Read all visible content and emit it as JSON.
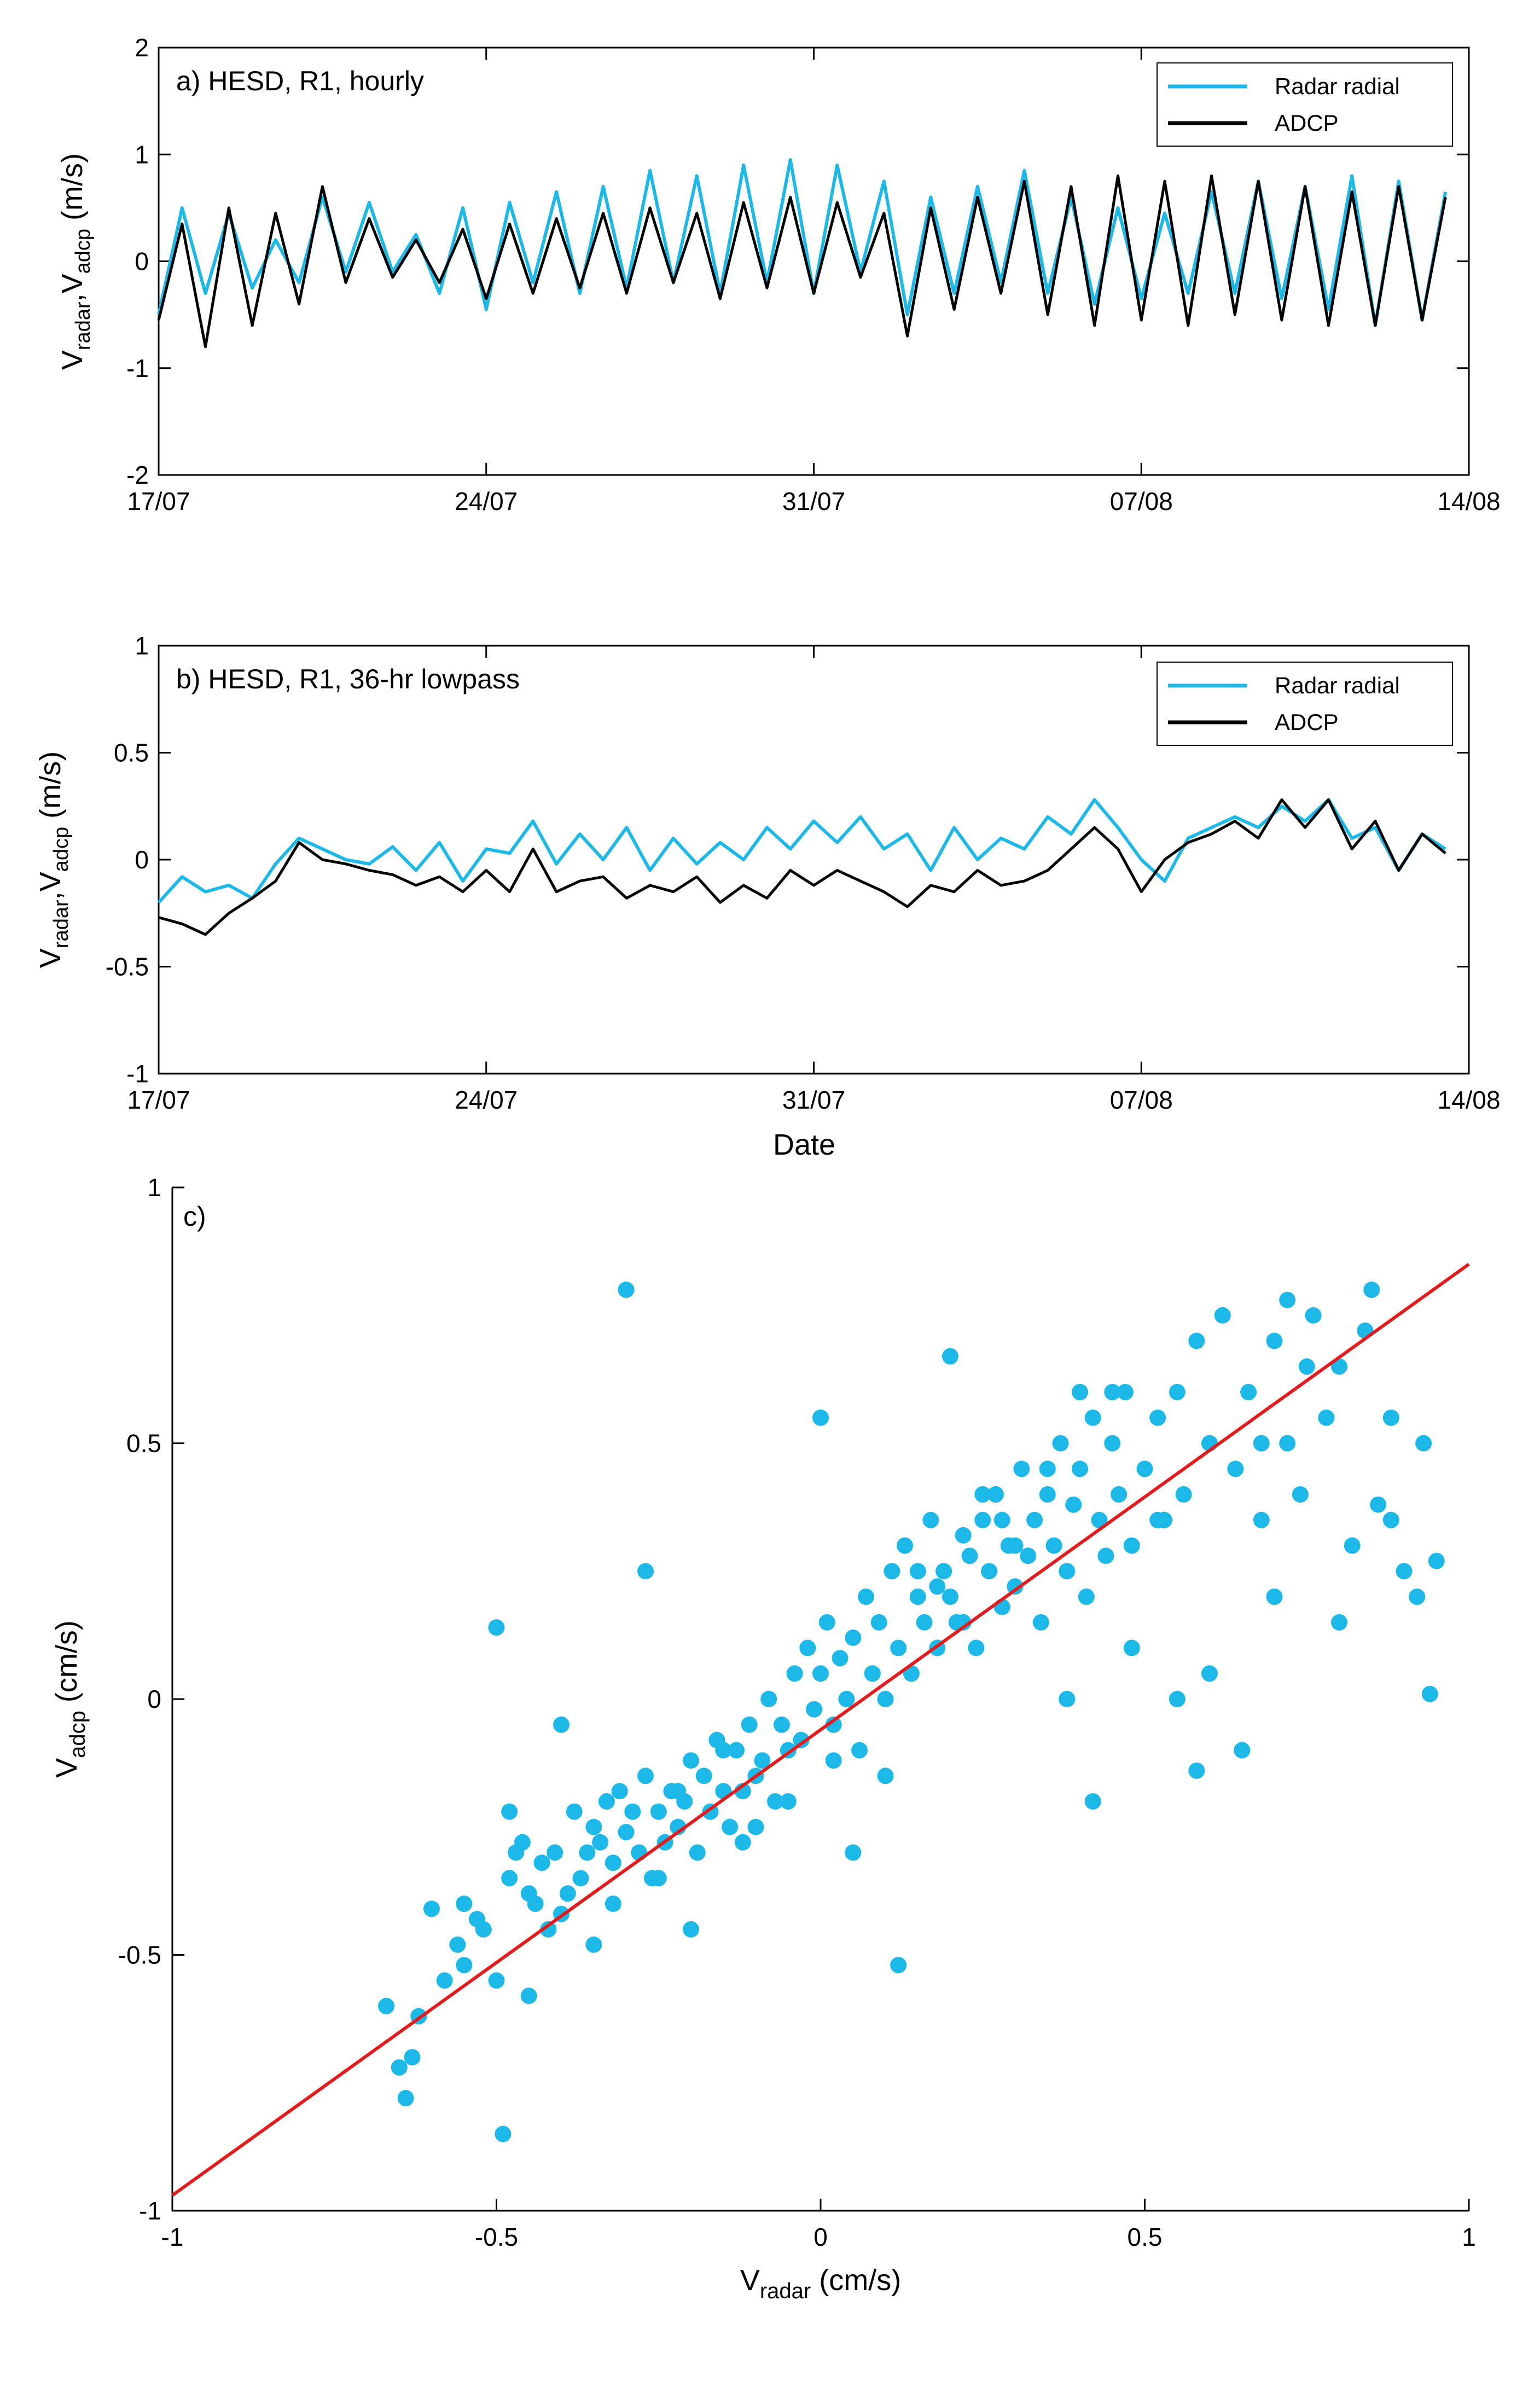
{
  "chart_data": [
    {
      "type": "line",
      "panel": "a",
      "title": "a) HESD, R1, hourly",
      "ylabel": {
        "main": "V",
        "sub1": "radar",
        "sep": ",V",
        "sub2": "adcp",
        "unit": " (m/s)"
      },
      "xlabel": "",
      "xlim": [
        0,
        28
      ],
      "ylim": [
        -2,
        2
      ],
      "yticks": [
        -2,
        -1,
        0,
        1,
        2
      ],
      "ytick_labels": [
        "-2",
        "-1",
        "0",
        "1",
        "2"
      ],
      "xticks": [
        0,
        7,
        14,
        21,
        28
      ],
      "xtick_labels": [
        "17/07",
        "24/07",
        "31/07",
        "07/08",
        "14/08"
      ],
      "legend": [
        "Radar radial",
        "ADCP"
      ],
      "legend_position": "top-right",
      "series": [
        {
          "name": "Radar radial",
          "color": "#1CB8E8",
          "x": [
            0.0,
            0.5,
            1.0,
            1.5,
            2.0,
            2.5,
            3.0,
            3.5,
            4.0,
            4.5,
            5.0,
            5.5,
            6.0,
            6.5,
            7.0,
            7.5,
            8.0,
            8.5,
            9.0,
            9.5,
            10.0,
            10.5,
            11.0,
            11.5,
            12.0,
            12.5,
            13.0,
            13.5,
            14.0,
            14.5,
            15.0,
            15.5,
            16.0,
            16.5,
            17.0,
            17.5,
            18.0,
            18.5,
            19.0,
            19.5,
            20.0,
            20.5,
            21.0,
            21.5,
            22.0,
            22.5,
            23.0,
            23.5,
            24.0,
            24.5,
            25.0,
            25.5,
            26.0,
            26.5,
            27.0,
            27.5
          ],
          "y": [
            -0.5,
            0.5,
            -0.3,
            0.45,
            -0.25,
            0.2,
            -0.2,
            0.6,
            -0.1,
            0.55,
            -0.1,
            0.25,
            -0.3,
            0.5,
            -0.45,
            0.55,
            -0.2,
            0.65,
            -0.3,
            0.7,
            -0.25,
            0.85,
            -0.2,
            0.8,
            -0.3,
            0.9,
            -0.2,
            0.95,
            -0.3,
            0.9,
            -0.1,
            0.75,
            -0.5,
            0.6,
            -0.3,
            0.7,
            -0.2,
            0.85,
            -0.3,
            0.6,
            -0.4,
            0.5,
            -0.35,
            0.45,
            -0.3,
            0.65,
            -0.3,
            0.75,
            -0.35,
            0.7,
            -0.45,
            0.8,
            -0.6,
            0.75,
            -0.55,
            0.65
          ]
        },
        {
          "name": "ADCP",
          "color": "#000000",
          "x": [
            0.0,
            0.5,
            1.0,
            1.5,
            2.0,
            2.5,
            3.0,
            3.5,
            4.0,
            4.5,
            5.0,
            5.5,
            6.0,
            6.5,
            7.0,
            7.5,
            8.0,
            8.5,
            9.0,
            9.5,
            10.0,
            10.5,
            11.0,
            11.5,
            12.0,
            12.5,
            13.0,
            13.5,
            14.0,
            14.5,
            15.0,
            15.5,
            16.0,
            16.5,
            17.0,
            17.5,
            18.0,
            18.5,
            19.0,
            19.5,
            20.0,
            20.5,
            21.0,
            21.5,
            22.0,
            22.5,
            23.0,
            23.5,
            24.0,
            24.5,
            25.0,
            25.5,
            26.0,
            26.5,
            27.0,
            27.5
          ],
          "y": [
            -0.55,
            0.35,
            -0.8,
            0.5,
            -0.6,
            0.45,
            -0.4,
            0.7,
            -0.2,
            0.4,
            -0.15,
            0.2,
            -0.2,
            0.3,
            -0.35,
            0.35,
            -0.3,
            0.4,
            -0.25,
            0.45,
            -0.3,
            0.5,
            -0.2,
            0.45,
            -0.35,
            0.55,
            -0.25,
            0.6,
            -0.3,
            0.55,
            -0.15,
            0.45,
            -0.7,
            0.5,
            -0.45,
            0.6,
            -0.3,
            0.75,
            -0.5,
            0.7,
            -0.6,
            0.8,
            -0.55,
            0.75,
            -0.6,
            0.8,
            -0.5,
            0.75,
            -0.55,
            0.7,
            -0.6,
            0.65,
            -0.6,
            0.7,
            -0.55,
            0.6
          ]
        }
      ]
    },
    {
      "type": "line",
      "panel": "b",
      "title": "b) HESD, R1, 36-hr lowpass",
      "ylabel": {
        "main": "V",
        "sub1": "radar",
        "sep": ",V",
        "sub2": "adcp",
        "unit": " (m/s)"
      },
      "xlabel": "Date",
      "xlim": [
        0,
        28
      ],
      "ylim": [
        -1,
        1
      ],
      "yticks": [
        -1,
        -0.5,
        0,
        0.5,
        1
      ],
      "ytick_labels": [
        "-1",
        "-0.5",
        "0",
        "0.5",
        "1"
      ],
      "xticks": [
        0,
        7,
        14,
        21,
        28
      ],
      "xtick_labels": [
        "17/07",
        "24/07",
        "31/07",
        "07/08",
        "14/08"
      ],
      "legend": [
        "Radar radial",
        "ADCP"
      ],
      "legend_position": "top-right",
      "series": [
        {
          "name": "Radar radial",
          "color": "#1CB8E8",
          "x": [
            0.0,
            0.5,
            1.0,
            1.5,
            2.0,
            2.5,
            3.0,
            3.5,
            4.0,
            4.5,
            5.0,
            5.5,
            6.0,
            6.5,
            7.0,
            7.5,
            8.0,
            8.5,
            9.0,
            9.5,
            10.0,
            10.5,
            11.0,
            11.5,
            12.0,
            12.5,
            13.0,
            13.5,
            14.0,
            14.5,
            15.0,
            15.5,
            16.0,
            16.5,
            17.0,
            17.5,
            18.0,
            18.5,
            19.0,
            19.5,
            20.0,
            20.5,
            21.0,
            21.5,
            22.0,
            22.5,
            23.0,
            23.5,
            24.0,
            24.5,
            25.0,
            25.5,
            26.0,
            26.5,
            27.0,
            27.5
          ],
          "y": [
            -0.2,
            -0.08,
            -0.15,
            -0.12,
            -0.18,
            -0.02,
            0.1,
            0.05,
            0.0,
            -0.02,
            0.06,
            -0.05,
            0.08,
            -0.1,
            0.05,
            0.03,
            0.18,
            -0.02,
            0.12,
            0.0,
            0.15,
            -0.05,
            0.1,
            -0.02,
            0.08,
            0.0,
            0.15,
            0.05,
            0.18,
            0.08,
            0.2,
            0.05,
            0.12,
            -0.05,
            0.15,
            0.0,
            0.1,
            0.05,
            0.2,
            0.12,
            0.28,
            0.15,
            0.0,
            -0.1,
            0.1,
            0.15,
            0.2,
            0.15,
            0.25,
            0.18,
            0.28,
            0.1,
            0.15,
            -0.05,
            0.12,
            0.05
          ]
        },
        {
          "name": "ADCP",
          "color": "#000000",
          "x": [
            0.0,
            0.5,
            1.0,
            1.5,
            2.0,
            2.5,
            3.0,
            3.5,
            4.0,
            4.5,
            5.0,
            5.5,
            6.0,
            6.5,
            7.0,
            7.5,
            8.0,
            8.5,
            9.0,
            9.5,
            10.0,
            10.5,
            11.0,
            11.5,
            12.0,
            12.5,
            13.0,
            13.5,
            14.0,
            14.5,
            15.0,
            15.5,
            16.0,
            16.5,
            17.0,
            17.5,
            18.0,
            18.5,
            19.0,
            19.5,
            20.0,
            20.5,
            21.0,
            21.5,
            22.0,
            22.5,
            23.0,
            23.5,
            24.0,
            24.5,
            25.0,
            25.5,
            26.0,
            26.5,
            27.0,
            27.5
          ],
          "y": [
            -0.27,
            -0.3,
            -0.35,
            -0.25,
            -0.18,
            -0.1,
            0.08,
            0.0,
            -0.02,
            -0.05,
            -0.07,
            -0.12,
            -0.08,
            -0.15,
            -0.05,
            -0.15,
            0.05,
            -0.15,
            -0.1,
            -0.08,
            -0.18,
            -0.12,
            -0.15,
            -0.08,
            -0.2,
            -0.12,
            -0.18,
            -0.05,
            -0.12,
            -0.05,
            -0.1,
            -0.15,
            -0.22,
            -0.12,
            -0.15,
            -0.05,
            -0.12,
            -0.1,
            -0.05,
            0.05,
            0.15,
            0.05,
            -0.15,
            0.0,
            0.08,
            0.12,
            0.18,
            0.1,
            0.28,
            0.15,
            0.28,
            0.05,
            0.18,
            -0.05,
            0.12,
            0.03
          ]
        }
      ]
    },
    {
      "type": "scatter",
      "panel": "c",
      "title": "c)",
      "xlabel": {
        "main": "V",
        "sub": "radar",
        "unit": " (cm/s)"
      },
      "ylabel": {
        "main": "V",
        "sub": "adcp",
        "unit": " (cm/s)"
      },
      "xlim": [
        -1,
        1
      ],
      "ylim": [
        -1,
        1
      ],
      "xticks": [
        -1,
        -0.5,
        0,
        0.5,
        1
      ],
      "xtick_labels": [
        "-1",
        "-0.5",
        "0",
        "0.5",
        "1"
      ],
      "yticks": [
        -1,
        -0.5,
        0,
        0.5,
        1
      ],
      "ytick_labels": [
        "-1",
        "-0.5",
        "0",
        "0.5",
        "1"
      ],
      "point_color": "#1CB8E8",
      "fit_line": {
        "color": "#E41A1C",
        "x": [
          -1,
          1
        ],
        "y": [
          -0.97,
          0.85
        ]
      },
      "points": {
        "x": [
          -0.67,
          -0.65,
          -0.64,
          -0.63,
          -0.62,
          -0.6,
          -0.58,
          -0.56,
          -0.55,
          -0.53,
          -0.52,
          -0.5,
          -0.49,
          -0.48,
          -0.47,
          -0.46,
          -0.45,
          -0.44,
          -0.43,
          -0.42,
          -0.41,
          -0.4,
          -0.39,
          -0.38,
          -0.37,
          -0.36,
          -0.35,
          -0.34,
          -0.33,
          -0.32,
          -0.31,
          -0.3,
          -0.29,
          -0.28,
          -0.27,
          -0.26,
          -0.25,
          -0.24,
          -0.23,
          -0.22,
          -0.21,
          -0.2,
          -0.19,
          -0.18,
          -0.17,
          -0.16,
          -0.15,
          -0.14,
          -0.13,
          -0.12,
          -0.11,
          -0.1,
          -0.09,
          -0.08,
          -0.07,
          -0.06,
          -0.05,
          -0.04,
          -0.03,
          -0.02,
          -0.01,
          0.0,
          0.01,
          0.02,
          0.03,
          0.04,
          0.05,
          0.06,
          0.07,
          0.08,
          0.09,
          0.1,
          0.11,
          0.12,
          0.13,
          0.14,
          0.15,
          0.16,
          0.17,
          0.18,
          0.19,
          0.2,
          0.21,
          0.22,
          0.23,
          0.24,
          0.25,
          0.26,
          0.27,
          0.28,
          0.29,
          0.3,
          0.31,
          0.32,
          0.33,
          0.34,
          0.35,
          0.36,
          0.37,
          0.38,
          0.39,
          0.4,
          0.41,
          0.42,
          0.43,
          0.44,
          0.45,
          0.46,
          0.47,
          0.48,
          0.5,
          0.52,
          0.53,
          0.55,
          0.56,
          0.58,
          0.6,
          0.62,
          0.64,
          0.66,
          0.68,
          0.7,
          0.72,
          0.74,
          0.76,
          0.78,
          0.8,
          0.82,
          0.84,
          0.86,
          0.88,
          0.9,
          0.93,
          0.95,
          -0.5,
          -0.27,
          0.0,
          0.12,
          0.2,
          0.42,
          0.58,
          0.38,
          0.65,
          -0.3,
          -0.15,
          0.05,
          0.3,
          -0.4,
          -0.2,
          0.1,
          0.25,
          0.45,
          0.7,
          0.85,
          -0.35,
          -0.1,
          0.15,
          0.35,
          0.55,
          0.75,
          -0.45,
          -0.25,
          -0.05,
          0.08,
          0.28,
          0.48,
          0.68,
          0.88,
          -0.55,
          -0.32,
          -0.12,
          0.02,
          0.22,
          0.4,
          0.6,
          0.8,
          0.94,
          -0.48,
          -0.22,
          0.18,
          0.52,
          0.72,
          0.92
        ],
        "y": [
          -0.6,
          -0.72,
          -0.78,
          -0.7,
          -0.62,
          -0.41,
          -0.55,
          -0.48,
          -0.4,
          -0.43,
          -0.45,
          -0.55,
          -0.85,
          -0.35,
          -0.3,
          -0.28,
          -0.38,
          -0.4,
          -0.32,
          -0.45,
          -0.3,
          -0.42,
          -0.38,
          -0.22,
          -0.35,
          -0.3,
          -0.25,
          -0.28,
          -0.2,
          -0.32,
          -0.18,
          -0.26,
          -0.22,
          -0.3,
          -0.15,
          -0.35,
          -0.22,
          -0.28,
          -0.18,
          -0.25,
          -0.2,
          -0.12,
          -0.3,
          -0.15,
          -0.22,
          -0.08,
          -0.18,
          -0.25,
          -0.1,
          -0.18,
          -0.05,
          -0.15,
          -0.12,
          0.0,
          -0.2,
          -0.05,
          -0.1,
          0.05,
          -0.08,
          0.1,
          -0.02,
          0.05,
          0.15,
          -0.05,
          0.08,
          0.0,
          0.12,
          -0.1,
          0.2,
          0.05,
          0.15,
          0.0,
          0.25,
          0.1,
          0.3,
          0.05,
          0.2,
          0.15,
          0.35,
          0.1,
          0.25,
          0.2,
          0.15,
          0.32,
          0.28,
          0.1,
          0.35,
          0.25,
          0.4,
          0.18,
          0.3,
          0.22,
          0.45,
          0.28,
          0.35,
          0.15,
          0.4,
          0.3,
          0.5,
          0.25,
          0.38,
          0.45,
          0.2,
          0.55,
          0.35,
          0.28,
          0.5,
          0.4,
          0.6,
          0.3,
          0.45,
          0.55,
          0.35,
          0.6,
          0.4,
          0.7,
          0.5,
          0.75,
          0.45,
          0.6,
          0.35,
          0.7,
          0.5,
          0.4,
          0.75,
          0.55,
          0.65,
          0.3,
          0.72,
          0.38,
          0.55,
          0.25,
          0.5,
          0.27,
          0.14,
          0.25,
          0.55,
          -0.52,
          0.67,
          -0.2,
          -0.14,
          0.0,
          -0.1,
          0.8,
          -0.1,
          -0.3,
          0.3,
          -0.05,
          -0.45,
          -0.15,
          0.4,
          0.6,
          0.2,
          0.8,
          -0.48,
          -0.25,
          0.25,
          0.45,
          0.0,
          0.65,
          -0.58,
          -0.35,
          -0.2,
          0.05,
          0.35,
          0.1,
          0.5,
          0.35,
          -0.52,
          -0.4,
          -0.28,
          -0.12,
          0.15,
          0.6,
          0.05,
          0.15,
          0.01,
          -0.22,
          -0.18,
          0.22,
          0.35,
          0.78,
          0.2
        ]
      }
    }
  ]
}
